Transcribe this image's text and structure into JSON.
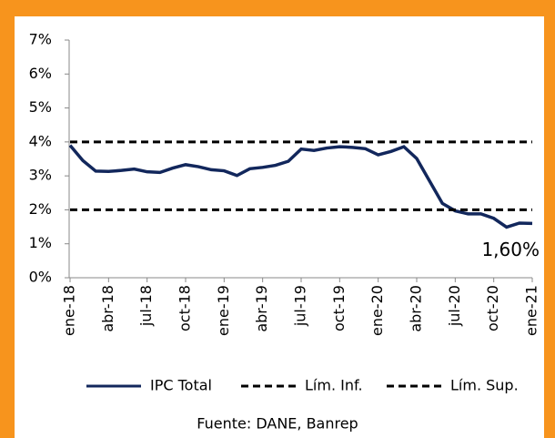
{
  "chart_data": {
    "type": "line",
    "categories": [
      "ene-18",
      null,
      null,
      "abr-18",
      null,
      null,
      "jul-18",
      null,
      null,
      "oct-18",
      null,
      null,
      "ene-19",
      null,
      null,
      "abr-19",
      null,
      null,
      "jul-19",
      null,
      null,
      "oct-19",
      null,
      null,
      "ene-20",
      null,
      null,
      "abr-20",
      null,
      null,
      "jul-20",
      null,
      null,
      "oct-20",
      null,
      null,
      "ene-21"
    ],
    "series": [
      {
        "name": "IPC Total",
        "color": "#12275c",
        "dashed": false,
        "values": [
          3.9,
          3.45,
          3.14,
          3.13,
          3.16,
          3.2,
          3.12,
          3.1,
          3.23,
          3.33,
          3.27,
          3.18,
          3.15,
          3.01,
          3.21,
          3.25,
          3.31,
          3.43,
          3.79,
          3.75,
          3.82,
          3.86,
          3.84,
          3.8,
          3.62,
          3.72,
          3.86,
          3.51,
          2.85,
          2.19,
          1.97,
          1.88,
          1.88,
          1.75,
          1.49,
          1.61,
          1.6
        ]
      },
      {
        "name": "Lím. Inf.",
        "color": "#000000",
        "dashed": true,
        "values": [
          2,
          2,
          2,
          2,
          2,
          2,
          2,
          2,
          2,
          2,
          2,
          2,
          2,
          2,
          2,
          2,
          2,
          2,
          2,
          2,
          2,
          2,
          2,
          2,
          2,
          2,
          2,
          2,
          2,
          2,
          2,
          2,
          2,
          2,
          2,
          2,
          2
        ]
      },
      {
        "name": "Lím. Sup.",
        "color": "#000000",
        "dashed": true,
        "values": [
          4,
          4,
          4,
          4,
          4,
          4,
          4,
          4,
          4,
          4,
          4,
          4,
          4,
          4,
          4,
          4,
          4,
          4,
          4,
          4,
          4,
          4,
          4,
          4,
          4,
          4,
          4,
          4,
          4,
          4,
          4,
          4,
          4,
          4,
          4,
          4,
          4
        ]
      }
    ],
    "ylim": [
      0,
      7
    ],
    "yticks": [
      {
        "value": 0,
        "label": "0%"
      },
      {
        "value": 1,
        "label": "1%"
      },
      {
        "value": 2,
        "label": "2%"
      },
      {
        "value": 3,
        "label": "3%"
      },
      {
        "value": 4,
        "label": "4%"
      },
      {
        "value": 5,
        "label": "5%"
      },
      {
        "value": 6,
        "label": "6%"
      },
      {
        "value": 7,
        "label": "7%"
      }
    ],
    "annotation": "1,60%",
    "source": "Fuente: DANE, Banrep",
    "legend": "bottom",
    "border_color": "#f7941d"
  }
}
